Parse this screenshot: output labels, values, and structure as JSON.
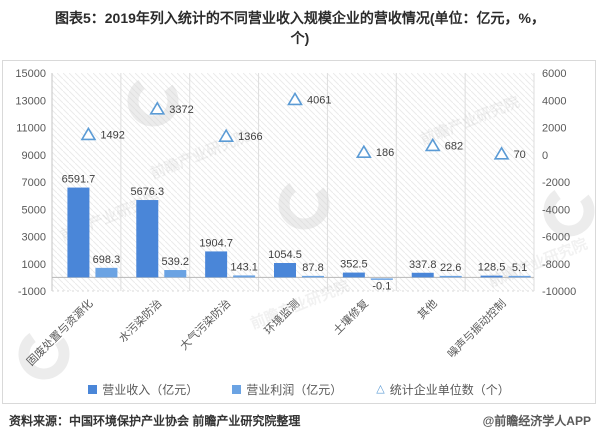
{
  "title": {
    "line1": "图表5：2019年列入统计的不同营业收入规模企业的营收情况(单位：亿元，%，",
    "line2": "个)"
  },
  "legend": {
    "items": [
      {
        "label": "营业收入（亿元）",
        "marker": "square",
        "color": "#4a86d8"
      },
      {
        "label": "营业利润（亿元）",
        "marker": "square",
        "color": "#6ba3e3"
      },
      {
        "label": "统计企业单位数（个）",
        "marker": "triangle",
        "color": "#5b9bd5"
      }
    ]
  },
  "footer": {
    "source": "资料来源：中国环境保护产业协会 前瞻产业研究院整理",
    "credit": "@前瞻经济学人APP"
  },
  "watermark_text": "前瞻产业研究院",
  "chart_data": {
    "type": "bar",
    "combo": "grouped bars on left axis + hollow triangle scatter markers on right axis",
    "title": "图表5：2019年列入统计的不同营业收入规模企业的营收情况(单位：亿元，%，个)",
    "categories": [
      "固废处置与资源化",
      "水污染防治",
      "大气污染防治",
      "环境监测",
      "土壤修复",
      "其他",
      "噪声与振动控制"
    ],
    "series": [
      {
        "name": "营业收入（亿元）",
        "style": "bar",
        "axis": "left",
        "color": "#4a86d8",
        "values": [
          6591.7,
          5676.3,
          1904.7,
          1054.5,
          352.5,
          337.8,
          128.5
        ]
      },
      {
        "name": "营业利润（亿元）",
        "style": "bar",
        "axis": "left",
        "color": "#6ba3e3",
        "values": [
          698.3,
          539.2,
          143.1,
          87.8,
          -0.1,
          22.6,
          5.1
        ]
      },
      {
        "name": "统计企业单位数（个）",
        "style": "scatter-triangle",
        "axis": "right",
        "color": "#5b9bd5",
        "values": [
          1492,
          3372,
          1366,
          4061,
          186,
          682,
          70
        ]
      }
    ],
    "left_axis": {
      "min": -1000,
      "max": 15000,
      "step": 2000,
      "ticks": [
        -1000,
        1000,
        3000,
        5000,
        7000,
        9000,
        11000,
        13000,
        15000
      ]
    },
    "right_axis": {
      "min": -10000,
      "max": 6000,
      "step": 2000,
      "ticks": [
        -10000,
        -8000,
        -6000,
        -4000,
        -2000,
        0,
        2000,
        4000,
        6000
      ]
    },
    "grid": {
      "vertical_category_lines": true,
      "zero_line": true,
      "bottom_line_dotted": true,
      "plot_hatch_watermark": true
    },
    "legend_position": "bottom",
    "tick_color": "#595959",
    "label_color": "#3f3f3f"
  }
}
